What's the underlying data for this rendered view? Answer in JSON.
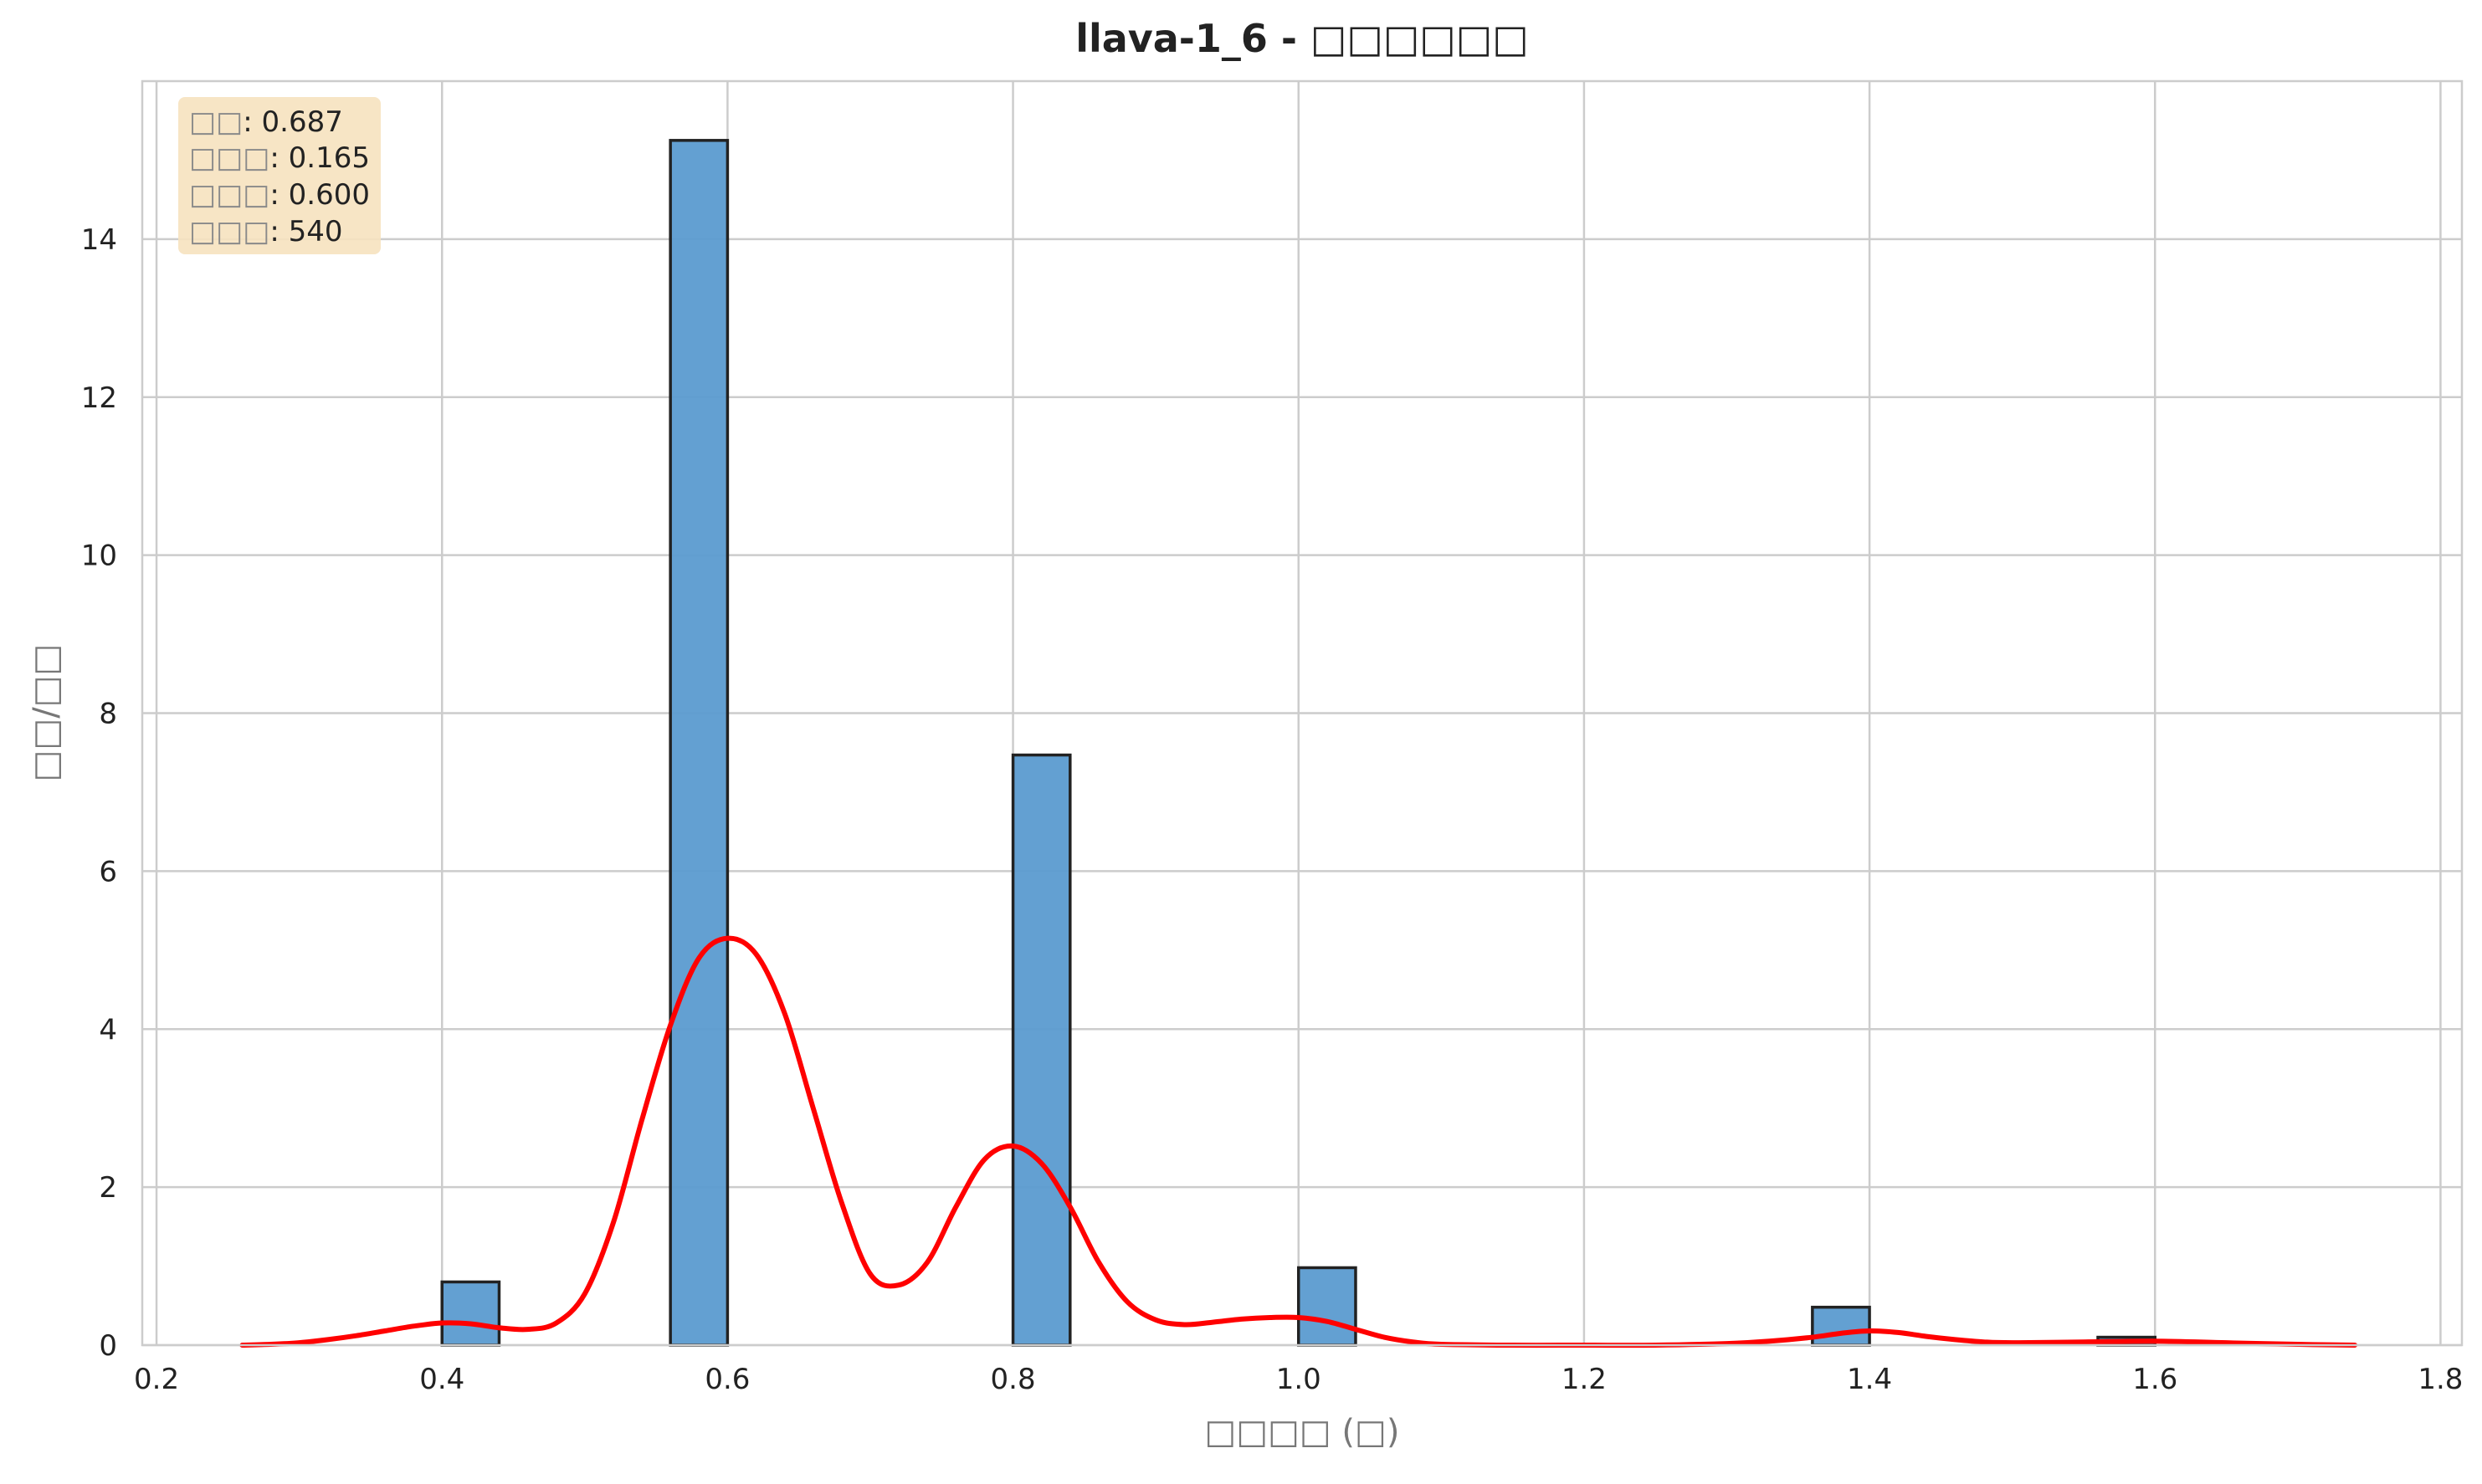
{
  "chart_data": {
    "type": "bar",
    "title": "llava-1_6 - □□□□□□",
    "xlabel": "□□□□ (□)",
    "ylabel": "□□/□□",
    "xlim": [
      0.19,
      1.815
    ],
    "ylim": [
      0,
      16
    ],
    "xticks": [
      0.2,
      0.4,
      0.6,
      0.8,
      1.0,
      1.2,
      1.4,
      1.6,
      1.8
    ],
    "xtick_labels": [
      "0.2",
      "0.4",
      "0.6",
      "0.8",
      "1.0",
      "1.2",
      "1.4",
      "1.6",
      "1.8"
    ],
    "yticks": [
      0,
      2,
      4,
      6,
      8,
      10,
      12,
      14
    ],
    "ytick_labels": [
      "0",
      "2",
      "4",
      "6",
      "8",
      "10",
      "12",
      "14"
    ],
    "grid": true,
    "bar_color": "#5b9bd0",
    "bar_edge_color": "#222222",
    "kde_color": "#ff0000",
    "bars": [
      {
        "x0": 0.4,
        "x1": 0.44,
        "value": 0.8
      },
      {
        "x0": 0.56,
        "x1": 0.6,
        "value": 15.25
      },
      {
        "x0": 0.8,
        "x1": 0.84,
        "value": 7.47
      },
      {
        "x0": 1.0,
        "x1": 1.04,
        "value": 0.98
      },
      {
        "x0": 1.36,
        "x1": 1.4,
        "value": 0.48
      },
      {
        "x0": 1.56,
        "x1": 1.6,
        "value": 0.1
      }
    ],
    "kde": {
      "name": "",
      "x": [
        0.26,
        0.28,
        0.3,
        0.32,
        0.34,
        0.36,
        0.38,
        0.4,
        0.42,
        0.44,
        0.46,
        0.48,
        0.5,
        0.52,
        0.54,
        0.56,
        0.58,
        0.6,
        0.62,
        0.64,
        0.66,
        0.68,
        0.7,
        0.72,
        0.74,
        0.76,
        0.78,
        0.8,
        0.82,
        0.84,
        0.86,
        0.88,
        0.9,
        0.92,
        0.94,
        0.96,
        0.98,
        1.0,
        1.02,
        1.04,
        1.06,
        1.08,
        1.1,
        1.15,
        1.2,
        1.25,
        1.3,
        1.33,
        1.36,
        1.38,
        1.4,
        1.42,
        1.44,
        1.46,
        1.48,
        1.5,
        1.55,
        1.6,
        1.65,
        1.7,
        1.74
      ],
      "y": [
        0.0,
        0.01,
        0.03,
        0.07,
        0.12,
        0.18,
        0.24,
        0.28,
        0.27,
        0.22,
        0.2,
        0.28,
        0.65,
        1.55,
        2.85,
        4.05,
        4.9,
        5.15,
        4.95,
        4.2,
        3.0,
        1.8,
        0.9,
        0.76,
        1.05,
        1.75,
        2.35,
        2.52,
        2.3,
        1.75,
        1.05,
        0.55,
        0.32,
        0.26,
        0.29,
        0.33,
        0.35,
        0.35,
        0.3,
        0.2,
        0.1,
        0.04,
        0.01,
        0.0,
        0.0,
        0.0,
        0.02,
        0.05,
        0.1,
        0.15,
        0.18,
        0.16,
        0.11,
        0.07,
        0.04,
        0.03,
        0.04,
        0.05,
        0.03,
        0.01,
        0.0
      ]
    },
    "stats_box": {
      "background": "#f6e2bf",
      "lines": [
        {
          "key": "□□",
          "value": ": 0.687"
        },
        {
          "key": "□□□",
          "value": ": 0.165"
        },
        {
          "key": "□□□",
          "value": ": 0.600"
        },
        {
          "key": "□□□",
          "value": ": 540"
        }
      ]
    }
  }
}
